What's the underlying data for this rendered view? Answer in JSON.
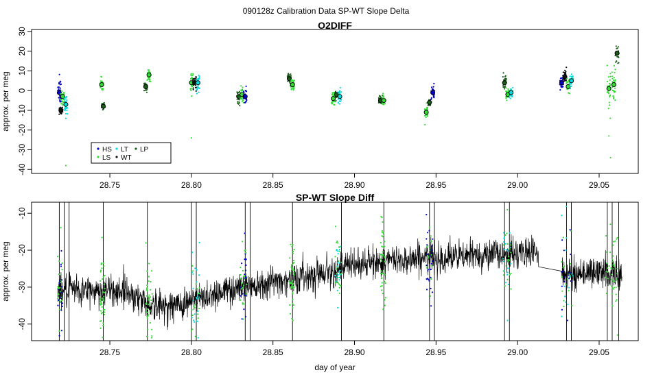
{
  "figure": {
    "suptitle": "090128z   Calibration Data SP-WT Slope Delta"
  },
  "chart_data": [
    {
      "type": "scatter",
      "title": "O2DIFF",
      "xlabel": "",
      "ylabel": "approx. per meg",
      "xlim": [
        28.702,
        29.074
      ],
      "ylim": [
        -42,
        31
      ],
      "xticks": [
        28.75,
        28.8,
        28.85,
        28.9,
        28.95,
        29.0,
        29.05
      ],
      "xtick_labels": [
        "28.75",
        "28.80",
        "28.85",
        "28.90",
        "28.95",
        "29.00",
        "29.05"
      ],
      "yticks": [
        -40,
        -30,
        -20,
        -10,
        0,
        10,
        20,
        30
      ],
      "ytick_labels": [
        "-40",
        "-30",
        "-20",
        "-10",
        "0",
        "10",
        "20",
        "30"
      ],
      "grid": false,
      "legend": {
        "position": "bottom-left",
        "entries": [
          {
            "label": "HS",
            "color": "#0000cc"
          },
          {
            "label": "LT",
            "color": "#00dddd"
          },
          {
            "label": "LP",
            "color": "#1a5c1a"
          },
          {
            "label": "LS",
            "color": "#33dd33"
          },
          {
            "label": "WT",
            "color": "#111111"
          }
        ]
      },
      "colors": {
        "HS": "#0000cc",
        "LS": "#33dd33",
        "LT": "#00dddd",
        "WT": "#111111",
        "LP": "#1a5c1a"
      },
      "clusters": [
        {
          "series": "HS",
          "x": 28.719,
          "mean": -1,
          "spread": 6
        },
        {
          "series": "WT",
          "x": 28.72,
          "mean": -10,
          "spread": 2
        },
        {
          "series": "LS",
          "x": 28.721,
          "mean": -3,
          "spread": 4
        },
        {
          "series": "LT",
          "x": 28.723,
          "mean": -7,
          "spread": 5
        },
        {
          "series": "LS",
          "x": 28.745,
          "mean": 3,
          "spread": 3
        },
        {
          "series": "LP",
          "x": 28.746,
          "mean": -8,
          "spread": 2
        },
        {
          "series": "LP",
          "x": 28.772,
          "mean": 2,
          "spread": 3
        },
        {
          "series": "LS",
          "x": 28.774,
          "mean": 8,
          "spread": 3
        },
        {
          "series": "LS",
          "x": 28.8,
          "mean": 4,
          "spread": 5
        },
        {
          "series": "WT",
          "x": 28.802,
          "mean": 4,
          "spread": 3
        },
        {
          "series": "LT",
          "x": 28.804,
          "mean": 4,
          "spread": 4
        },
        {
          "series": "LP",
          "x": 28.829,
          "mean": -3,
          "spread": 3
        },
        {
          "series": "LS",
          "x": 28.831,
          "mean": -2,
          "spread": 3
        },
        {
          "series": "HS",
          "x": 28.833,
          "mean": -3,
          "spread": 4
        },
        {
          "series": "LP",
          "x": 28.86,
          "mean": 6,
          "spread": 3
        },
        {
          "series": "LS",
          "x": 28.862,
          "mean": 3,
          "spread": 3
        },
        {
          "series": "LS",
          "x": 28.887,
          "mean": -4,
          "spread": 3
        },
        {
          "series": "LP",
          "x": 28.889,
          "mean": -2,
          "spread": 2
        },
        {
          "series": "LT",
          "x": 28.891,
          "mean": -3,
          "spread": 3
        },
        {
          "series": "LP",
          "x": 28.916,
          "mean": -5,
          "spread": 2
        },
        {
          "series": "LS",
          "x": 28.918,
          "mean": -5,
          "spread": 3
        },
        {
          "series": "LS",
          "x": 28.944,
          "mean": -11,
          "spread": 4
        },
        {
          "series": "LP",
          "x": 28.946,
          "mean": -6,
          "spread": 2
        },
        {
          "series": "HS",
          "x": 28.948,
          "mean": -1,
          "spread": 3
        },
        {
          "series": "LP",
          "x": 28.992,
          "mean": 4,
          "spread": 3
        },
        {
          "series": "LS",
          "x": 28.994,
          "mean": -2,
          "spread": 3
        },
        {
          "series": "LT",
          "x": 28.996,
          "mean": -1,
          "spread": 3
        },
        {
          "series": "HS",
          "x": 29.027,
          "mean": 4,
          "spread": 3
        },
        {
          "series": "WT",
          "x": 29.029,
          "mean": 7,
          "spread": 3
        },
        {
          "series": "LS",
          "x": 29.031,
          "mean": 2,
          "spread": 3
        },
        {
          "series": "LT",
          "x": 29.033,
          "mean": 5,
          "spread": 3
        },
        {
          "series": "LS",
          "x": 29.056,
          "mean": 1,
          "spread": 10
        },
        {
          "series": "LS",
          "x": 29.059,
          "mean": 3,
          "spread": 8
        },
        {
          "series": "LP",
          "x": 29.061,
          "mean": 19,
          "spread": 4
        }
      ]
    },
    {
      "type": "line",
      "title": "SP-WT Slope Diff",
      "xlabel": "day of year",
      "ylabel": "approx. per meg",
      "xlim": [
        28.702,
        29.074
      ],
      "ylim": [
        -44.5,
        -7
      ],
      "xticks": [
        28.75,
        28.8,
        28.85,
        28.9,
        28.95,
        29.0,
        29.05
      ],
      "xtick_labels": [
        "28.75",
        "28.80",
        "28.85",
        "28.90",
        "28.95",
        "29.00",
        "29.05"
      ],
      "yticks": [
        -40,
        -30,
        -20,
        -10
      ],
      "ytick_labels": [
        "-40",
        "-30",
        "-20",
        "-10"
      ],
      "grid": false,
      "trend": {
        "x": [
          28.718,
          28.745,
          28.76,
          28.775,
          28.79,
          28.805,
          28.82,
          28.84,
          28.86,
          28.88,
          28.9,
          28.92,
          28.94,
          28.96,
          28.98,
          29.0,
          29.013,
          29.027,
          29.04,
          29.064
        ],
        "y": [
          -31,
          -31,
          -31,
          -35,
          -35,
          -33,
          -31,
          -29,
          -28,
          -26,
          -24,
          -23,
          -22,
          -22,
          -21,
          -21,
          -20,
          -27,
          -26,
          -26
        ]
      },
      "noise_amplitude": 3.5,
      "gaps": [
        [
          29.013,
          29.027
        ]
      ],
      "spikes_x": [
        28.719,
        28.722,
        28.725,
        28.746,
        28.773,
        28.8,
        28.803,
        28.833,
        28.836,
        28.862,
        28.892,
        28.918,
        28.946,
        28.949,
        28.992,
        28.995,
        29.03,
        29.033,
        29.055,
        29.058,
        29.062
      ],
      "calibration_marks": [
        {
          "x0": 28.718,
          "x1": 28.721,
          "colors": [
            "#0000cc",
            "#33dd33"
          ]
        },
        {
          "x0": 28.744,
          "x1": 28.747,
          "colors": [
            "#33dd33"
          ]
        },
        {
          "x0": 28.772,
          "x1": 28.776,
          "colors": [
            "#33dd33"
          ]
        },
        {
          "x0": 28.8,
          "x1": 28.805,
          "colors": [
            "#33dd33",
            "#00dddd"
          ]
        },
        {
          "x0": 28.83,
          "x1": 28.834,
          "colors": [
            "#33dd33",
            "#0000cc"
          ]
        },
        {
          "x0": 28.86,
          "x1": 28.863,
          "colors": [
            "#33dd33"
          ]
        },
        {
          "x0": 28.888,
          "x1": 28.892,
          "colors": [
            "#33dd33",
            "#00dddd"
          ]
        },
        {
          "x0": 28.916,
          "x1": 28.919,
          "colors": [
            "#33dd33"
          ]
        },
        {
          "x0": 28.944,
          "x1": 28.948,
          "colors": [
            "#33dd33",
            "#0000cc"
          ]
        },
        {
          "x0": 28.991,
          "x1": 28.996,
          "colors": [
            "#33dd33",
            "#00dddd"
          ]
        },
        {
          "x0": 29.027,
          "x1": 29.034,
          "colors": [
            "#0000cc",
            "#33dd33",
            "#00dddd"
          ]
        },
        {
          "x0": 29.054,
          "x1": 29.062,
          "colors": [
            "#33dd33"
          ]
        }
      ]
    }
  ]
}
